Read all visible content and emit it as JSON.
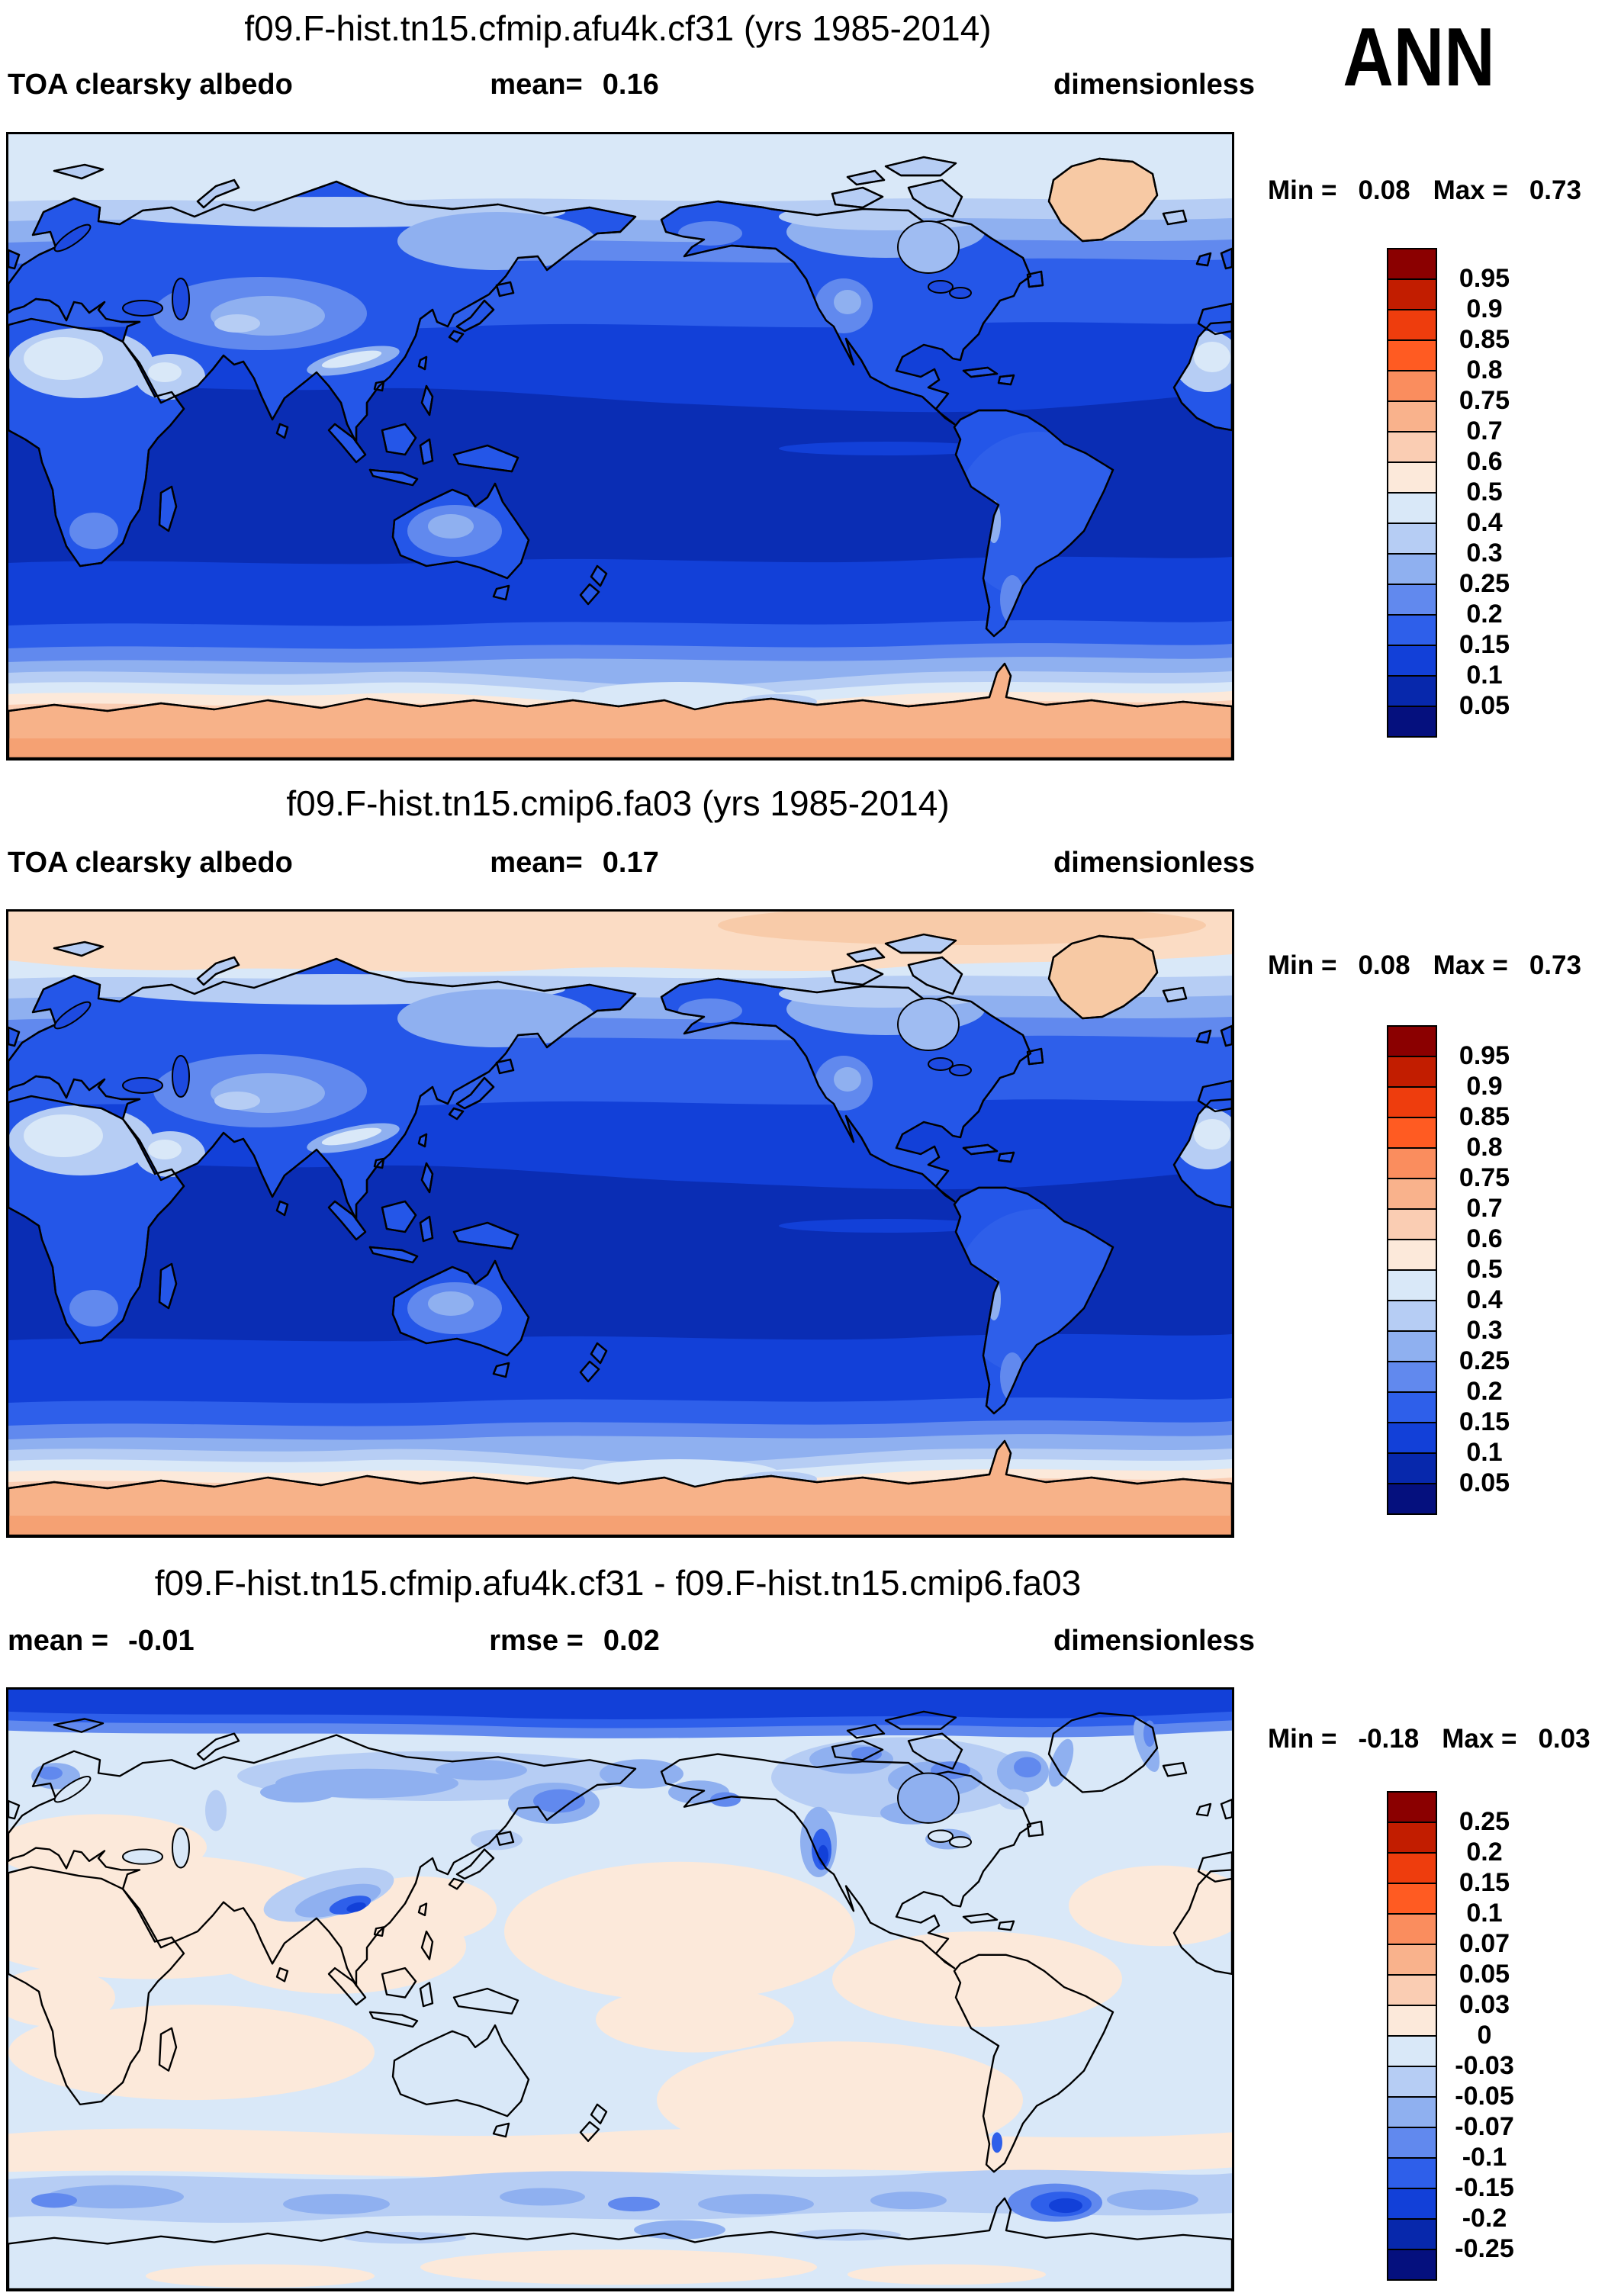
{
  "season_label": "ANN",
  "colorbar": {
    "palette": [
      "#8B0000",
      "#C21D00",
      "#EE3D0D",
      "#FF5B22",
      "#FA8D5E",
      "#F9B28C",
      "#FACDB3",
      "#FCE9DA",
      "#D9E8F8",
      "#B6CDF4",
      "#8FB0F0",
      "#6189EE",
      "#2E5FEA",
      "#1240D8",
      "#0728AC",
      "#05107E"
    ]
  },
  "panels": [
    {
      "title": "f09.F-hist.tn15.cfmip.afu4k.cf31 (yrs 1985-2014)",
      "header_left": {
        "label": "TOA clearsky albedo",
        "value": ""
      },
      "header_center": {
        "label": "mean=",
        "value": "0.16"
      },
      "header_right": "dimensionless",
      "minmax": {
        "min_label": "Min =",
        "min_value": "0.08",
        "max_label": "Max =",
        "max_value": "0.73"
      },
      "colorbar_ticks": [
        "0.95",
        "0.9",
        "0.85",
        "0.8",
        "0.75",
        "0.7",
        "0.6",
        "0.5",
        "0.4",
        "0.3",
        "0.25",
        "0.2",
        "0.15",
        "0.1",
        "0.05"
      ]
    },
    {
      "title": "f09.F-hist.tn15.cmip6.fa03 (yrs 1985-2014)",
      "header_left": {
        "label": "TOA clearsky albedo",
        "value": ""
      },
      "header_center": {
        "label": "mean=",
        "value": "0.17"
      },
      "header_right": "dimensionless",
      "minmax": {
        "min_label": "Min =",
        "min_value": "0.08",
        "max_label": "Max =",
        "max_value": "0.73"
      },
      "colorbar_ticks": [
        "0.95",
        "0.9",
        "0.85",
        "0.8",
        "0.75",
        "0.7",
        "0.6",
        "0.5",
        "0.4",
        "0.3",
        "0.25",
        "0.2",
        "0.15",
        "0.1",
        "0.05"
      ]
    },
    {
      "title": "f09.F-hist.tn15.cfmip.afu4k.cf31 - f09.F-hist.tn15.cmip6.fa03",
      "header_left": {
        "label": "mean =",
        "value": "-0.01"
      },
      "header_center": {
        "label": "rmse =",
        "value": "0.02"
      },
      "header_right": "dimensionless",
      "minmax": {
        "min_label": "Min =",
        "min_value": "-0.18",
        "max_label": "Max =",
        "max_value": "0.03"
      },
      "colorbar_ticks": [
        "0.25",
        "0.2",
        "0.15",
        "0.1",
        "0.07",
        "0.05",
        "0.03",
        "0",
        "-0.03",
        "-0.05",
        "-0.07",
        "-0.1",
        "-0.15",
        "-0.2",
        "-0.25"
      ]
    }
  ],
  "chart_data": [
    {
      "type": "heatmap",
      "projection": "global latitude-longitude contour map",
      "title": "f09.F-hist.tn15.cfmip.afu4k.cf31 (yrs 1985-2014)",
      "variable": "TOA clearsky albedo",
      "season": "ANN",
      "units": "dimensionless",
      "mean": 0.16,
      "min": 0.08,
      "max": 0.73,
      "contour_levels": [
        0.05,
        0.1,
        0.15,
        0.2,
        0.25,
        0.3,
        0.4,
        0.5,
        0.6,
        0.7,
        0.75,
        0.8,
        0.85,
        0.9,
        0.95
      ],
      "legend_position": "right"
    },
    {
      "type": "heatmap",
      "projection": "global latitude-longitude contour map",
      "title": "f09.F-hist.tn15.cmip6.fa03 (yrs 1985-2014)",
      "variable": "TOA clearsky albedo",
      "season": "ANN",
      "units": "dimensionless",
      "mean": 0.17,
      "min": 0.08,
      "max": 0.73,
      "contour_levels": [
        0.05,
        0.1,
        0.15,
        0.2,
        0.25,
        0.3,
        0.4,
        0.5,
        0.6,
        0.7,
        0.75,
        0.8,
        0.85,
        0.9,
        0.95
      ],
      "legend_position": "right"
    },
    {
      "type": "heatmap",
      "projection": "global latitude-longitude contour map",
      "title": "f09.F-hist.tn15.cfmip.afu4k.cf31 - f09.F-hist.tn15.cmip6.fa03",
      "variable": "TOA clearsky albedo difference",
      "season": "ANN",
      "units": "dimensionless",
      "mean": -0.01,
      "rmse": 0.02,
      "min": -0.18,
      "max": 0.03,
      "contour_levels": [
        -0.25,
        -0.2,
        -0.15,
        -0.1,
        -0.07,
        -0.05,
        -0.03,
        0,
        0.03,
        0.05,
        0.07,
        0.1,
        0.15,
        0.2,
        0.25
      ],
      "legend_position": "right"
    }
  ]
}
